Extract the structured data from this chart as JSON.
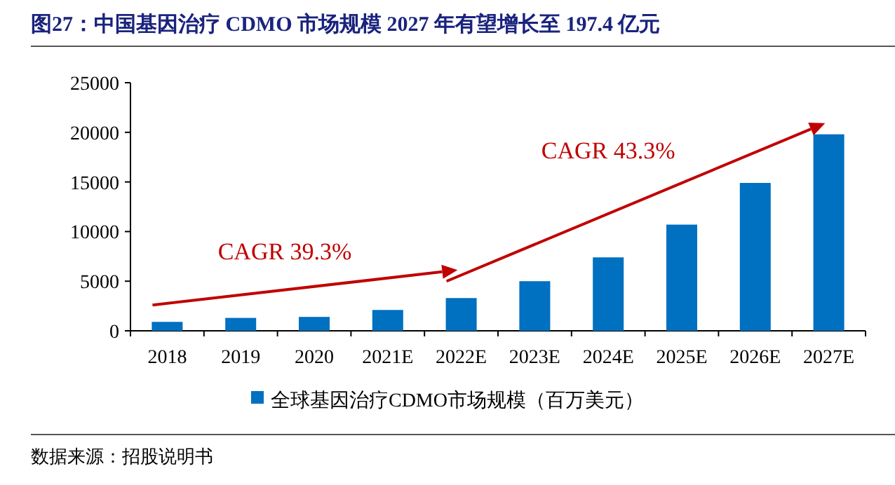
{
  "chart_data": {
    "type": "bar",
    "title": "图27：中国基因治疗 CDMO 市场规模 2027 年有望增长至 197.4 亿元",
    "categories": [
      "2018",
      "2019",
      "2020",
      "2021E",
      "2022E",
      "2023E",
      "2024E",
      "2025E",
      "2026E",
      "2027E"
    ],
    "series": [
      {
        "name": "全球基因治疗CDMO市场规模（百万美元）",
        "color": "#0070c0",
        "values": [
          900,
          1300,
          1400,
          2100,
          3300,
          5000,
          7400,
          10700,
          14900,
          19800
        ]
      }
    ],
    "ylim": [
      0,
      25000
    ],
    "yticks": [
      0,
      5000,
      10000,
      15000,
      20000,
      25000
    ],
    "legend": "bottom",
    "annotations": [
      "CAGR 39.3%",
      "CAGR 43.3%",
      "数据来源：招股说明书"
    ]
  }
}
